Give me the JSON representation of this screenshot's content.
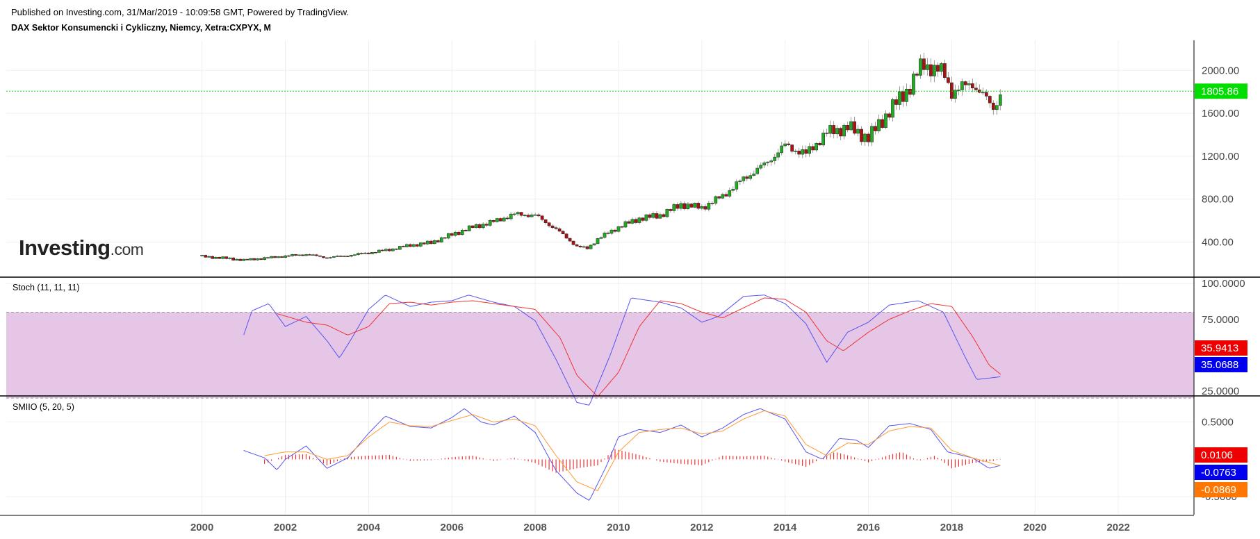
{
  "header": {
    "published": "Published on Investing.com, 31/Mar/2019 - 10:09:58 GMT, Powered by TradingView.",
    "symbol": "DAX Sektor Konsumencki i Cykliczny, Niemcy, Xetra:CXPYX, M"
  },
  "logo": {
    "brand": "Investing",
    "suffix": ".com"
  },
  "colors": {
    "up": "#22aa22",
    "down": "#aa1111",
    "last_price": "#00dd00",
    "stoch_k": "#5555ee",
    "stoch_d": "#ee3333",
    "zone": "#e6c6e6",
    "smi": "#5555ee",
    "smi_signal": "#ff9933",
    "hist": "#ee3333"
  },
  "chart_data": [
    {
      "type": "candlestick",
      "title": "DAX Sektor Konsumencki i Cykliczny, Niemcy, Xetra:CXPYX, M",
      "x_ticks": [
        "2000",
        "2002",
        "2004",
        "2006",
        "2008",
        "2010",
        "2012",
        "2014",
        "2016",
        "2018",
        "2020",
        "2022"
      ],
      "x_range": [
        1995.3,
        2023.8
      ],
      "y_ticks": [
        "400.00",
        "800.00",
        "1200.00",
        "1600.00",
        "2000.00"
      ],
      "ylim": [
        80,
        2280
      ],
      "last_price": "1805.86",
      "grid": true,
      "close_points": [
        [
          2000.0,
          265
        ],
        [
          2000.5,
          252
        ],
        [
          2001.0,
          232
        ],
        [
          2001.5,
          250
        ],
        [
          2002.0,
          270
        ],
        [
          2002.5,
          285
        ],
        [
          2003.0,
          255
        ],
        [
          2003.5,
          275
        ],
        [
          2004.0,
          300
        ],
        [
          2004.5,
          330
        ],
        [
          2005.0,
          370
        ],
        [
          2005.5,
          395
        ],
        [
          2006.0,
          470
        ],
        [
          2006.5,
          540
        ],
        [
          2007.0,
          590
        ],
        [
          2007.5,
          660
        ],
        [
          2008.0,
          650
        ],
        [
          2008.5,
          520
        ],
        [
          2009.0,
          360
        ],
        [
          2009.25,
          340
        ],
        [
          2009.5,
          430
        ],
        [
          2010.0,
          540
        ],
        [
          2010.5,
          620
        ],
        [
          2011.0,
          650
        ],
        [
          2011.5,
          750
        ],
        [
          2012.0,
          720
        ],
        [
          2012.5,
          830
        ],
        [
          2013.0,
          990
        ],
        [
          2013.5,
          1120
        ],
        [
          2014.0,
          1300
        ],
        [
          2014.5,
          1220
        ],
        [
          2015.0,
          1420
        ],
        [
          2015.5,
          1470
        ],
        [
          2016.0,
          1370
        ],
        [
          2016.5,
          1620
        ],
        [
          2017.0,
          1850
        ],
        [
          2017.3,
          2060
        ],
        [
          2017.8,
          1980
        ],
        [
          2018.0,
          1800
        ],
        [
          2018.5,
          1880
        ],
        [
          2019.0,
          1650
        ],
        [
          2019.2,
          1805.86
        ]
      ]
    },
    {
      "type": "line",
      "title": "Stoch (11, 11, 11)",
      "y_ticks": [
        "25.0000",
        "75.0000",
        "100.0000"
      ],
      "ylim": [
        22,
        104
      ],
      "band": [
        20,
        80
      ],
      "series": [
        {
          "id": "k",
          "last": "35.0688",
          "points": [
            [
              2001.0,
              64
            ],
            [
              2001.2,
              81
            ],
            [
              2001.6,
              86
            ],
            [
              2002.0,
              70
            ],
            [
              2002.5,
              77
            ],
            [
              2003.0,
              60
            ],
            [
              2003.3,
              48
            ],
            [
              2003.6,
              62
            ],
            [
              2004.0,
              82
            ],
            [
              2004.4,
              92
            ],
            [
              2005.0,
              84
            ],
            [
              2005.5,
              87
            ],
            [
              2006.0,
              88
            ],
            [
              2006.4,
              92
            ],
            [
              2007.0,
              87
            ],
            [
              2007.5,
              84
            ],
            [
              2008.0,
              74
            ],
            [
              2008.5,
              47
            ],
            [
              2009.0,
              17
            ],
            [
              2009.3,
              15
            ],
            [
              2009.8,
              50
            ],
            [
              2010.3,
              90
            ],
            [
              2011.0,
              87
            ],
            [
              2011.5,
              83
            ],
            [
              2012.0,
              73
            ],
            [
              2012.4,
              77
            ],
            [
              2013.0,
              91
            ],
            [
              2013.5,
              92
            ],
            [
              2014.0,
              86
            ],
            [
              2014.5,
              72
            ],
            [
              2015.0,
              45
            ],
            [
              2015.5,
              66
            ],
            [
              2016.0,
              73
            ],
            [
              2016.5,
              85
            ],
            [
              2017.2,
              88
            ],
            [
              2017.8,
              80
            ],
            [
              2018.3,
              50
            ],
            [
              2018.6,
              33
            ],
            [
              2018.9,
              34
            ],
            [
              2019.2,
              35
            ]
          ]
        },
        {
          "id": "d",
          "last": "35.9413",
          "points": [
            [
              2001.8,
              79
            ],
            [
              2002.5,
              73
            ],
            [
              2003.0,
              71
            ],
            [
              2003.5,
              64
            ],
            [
              2004.0,
              70
            ],
            [
              2004.5,
              86
            ],
            [
              2005.0,
              87
            ],
            [
              2005.5,
              85
            ],
            [
              2006.0,
              87
            ],
            [
              2006.5,
              88
            ],
            [
              2007.0,
              86
            ],
            [
              2007.5,
              84
            ],
            [
              2008.0,
              82
            ],
            [
              2008.6,
              62
            ],
            [
              2009.0,
              36
            ],
            [
              2009.5,
              21
            ],
            [
              2010.0,
              38
            ],
            [
              2010.5,
              70
            ],
            [
              2011.0,
              88
            ],
            [
              2011.5,
              86
            ],
            [
              2012.0,
              80
            ],
            [
              2012.5,
              76
            ],
            [
              2013.0,
              83
            ],
            [
              2013.5,
              90
            ],
            [
              2014.0,
              89
            ],
            [
              2014.5,
              80
            ],
            [
              2015.0,
              60
            ],
            [
              2015.4,
              53
            ],
            [
              2016.0,
              66
            ],
            [
              2016.5,
              75
            ],
            [
              2017.0,
              81
            ],
            [
              2017.5,
              86
            ],
            [
              2018.0,
              84
            ],
            [
              2018.5,
              63
            ],
            [
              2018.9,
              43
            ],
            [
              2019.2,
              36
            ]
          ]
        }
      ]
    },
    {
      "type": "line",
      "title": "SMIIO (5, 20, 5)",
      "y_ticks": [
        "0.5000",
        "-0.5000"
      ],
      "ylim": [
        -0.74,
        0.84
      ],
      "series": [
        {
          "id": "smi",
          "last": "-0.0763",
          "points": [
            [
              2001.0,
              0.12
            ],
            [
              2001.5,
              0.02
            ],
            [
              2001.8,
              -0.14
            ],
            [
              2002.0,
              0.0
            ],
            [
              2002.5,
              0.18
            ],
            [
              2003.0,
              -0.12
            ],
            [
              2003.5,
              0.02
            ],
            [
              2004.0,
              0.35
            ],
            [
              2004.4,
              0.58
            ],
            [
              2005.0,
              0.44
            ],
            [
              2005.5,
              0.42
            ],
            [
              2006.0,
              0.56
            ],
            [
              2006.3,
              0.68
            ],
            [
              2006.7,
              0.5
            ],
            [
              2007.0,
              0.46
            ],
            [
              2007.5,
              0.58
            ],
            [
              2008.0,
              0.36
            ],
            [
              2008.5,
              -0.15
            ],
            [
              2009.0,
              -0.45
            ],
            [
              2009.3,
              -0.55
            ],
            [
              2009.7,
              -0.1
            ],
            [
              2010.0,
              0.3
            ],
            [
              2010.5,
              0.4
            ],
            [
              2011.0,
              0.36
            ],
            [
              2011.5,
              0.46
            ],
            [
              2012.0,
              0.3
            ],
            [
              2012.5,
              0.42
            ],
            [
              2013.0,
              0.6
            ],
            [
              2013.4,
              0.68
            ],
            [
              2014.0,
              0.54
            ],
            [
              2014.5,
              0.1
            ],
            [
              2014.9,
              0.0
            ],
            [
              2015.3,
              0.28
            ],
            [
              2015.7,
              0.26
            ],
            [
              2016.0,
              0.16
            ],
            [
              2016.5,
              0.45
            ],
            [
              2017.0,
              0.48
            ],
            [
              2017.5,
              0.4
            ],
            [
              2017.9,
              0.1
            ],
            [
              2018.5,
              0.02
            ],
            [
              2018.9,
              -0.12
            ],
            [
              2019.2,
              -0.0763
            ]
          ]
        },
        {
          "id": "signal",
          "last": "-0.0869",
          "points": [
            [
              2001.5,
              0.05
            ],
            [
              2002.0,
              0.1
            ],
            [
              2002.5,
              0.1
            ],
            [
              2003.0,
              0.0
            ],
            [
              2003.5,
              0.05
            ],
            [
              2004.0,
              0.3
            ],
            [
              2004.5,
              0.5
            ],
            [
              2005.0,
              0.45
            ],
            [
              2005.5,
              0.44
            ],
            [
              2006.0,
              0.52
            ],
            [
              2006.5,
              0.6
            ],
            [
              2007.0,
              0.5
            ],
            [
              2007.5,
              0.54
            ],
            [
              2008.0,
              0.45
            ],
            [
              2008.5,
              0.05
            ],
            [
              2009.0,
              -0.3
            ],
            [
              2009.5,
              -0.42
            ],
            [
              2010.0,
              0.1
            ],
            [
              2010.5,
              0.36
            ],
            [
              2011.0,
              0.4
            ],
            [
              2011.5,
              0.42
            ],
            [
              2012.0,
              0.34
            ],
            [
              2012.5,
              0.38
            ],
            [
              2013.0,
              0.54
            ],
            [
              2013.5,
              0.65
            ],
            [
              2014.0,
              0.58
            ],
            [
              2014.5,
              0.2
            ],
            [
              2015.0,
              0.05
            ],
            [
              2015.5,
              0.22
            ],
            [
              2016.0,
              0.2
            ],
            [
              2016.5,
              0.38
            ],
            [
              2017.0,
              0.44
            ],
            [
              2017.5,
              0.42
            ],
            [
              2018.0,
              0.12
            ],
            [
              2018.5,
              0.02
            ],
            [
              2019.2,
              -0.0869
            ]
          ]
        },
        {
          "id": "histogram",
          "last": "0.0106",
          "points": [
            [
              2001.5,
              -0.06
            ],
            [
              2002.0,
              0.06
            ],
            [
              2002.5,
              0.07
            ],
            [
              2003.0,
              -0.08
            ],
            [
              2003.5,
              0.03
            ],
            [
              2004.0,
              0.05
            ],
            [
              2004.5,
              0.06
            ],
            [
              2005.0,
              -0.02
            ],
            [
              2005.5,
              -0.01
            ],
            [
              2006.0,
              0.03
            ],
            [
              2006.5,
              0.05
            ],
            [
              2007.0,
              -0.02
            ],
            [
              2007.5,
              0.02
            ],
            [
              2008.0,
              -0.05
            ],
            [
              2008.5,
              -0.18
            ],
            [
              2009.0,
              -0.12
            ],
            [
              2009.5,
              -0.08
            ],
            [
              2009.9,
              0.14
            ],
            [
              2010.5,
              0.06
            ],
            [
              2011.0,
              -0.03
            ],
            [
              2011.5,
              -0.06
            ],
            [
              2012.0,
              -0.08
            ],
            [
              2012.5,
              0.05
            ],
            [
              2013.0,
              0.04
            ],
            [
              2013.5,
              0.05
            ],
            [
              2014.0,
              -0.03
            ],
            [
              2014.5,
              -0.1
            ],
            [
              2015.0,
              0.05
            ],
            [
              2015.2,
              0.1
            ],
            [
              2015.6,
              0.04
            ],
            [
              2016.0,
              -0.04
            ],
            [
              2016.5,
              0.06
            ],
            [
              2016.8,
              0.1
            ],
            [
              2017.2,
              -0.02
            ],
            [
              2017.6,
              0.05
            ],
            [
              2018.0,
              -0.12
            ],
            [
              2018.5,
              -0.05
            ],
            [
              2019.0,
              -0.02
            ],
            [
              2019.2,
              0.0106
            ]
          ]
        }
      ]
    }
  ]
}
